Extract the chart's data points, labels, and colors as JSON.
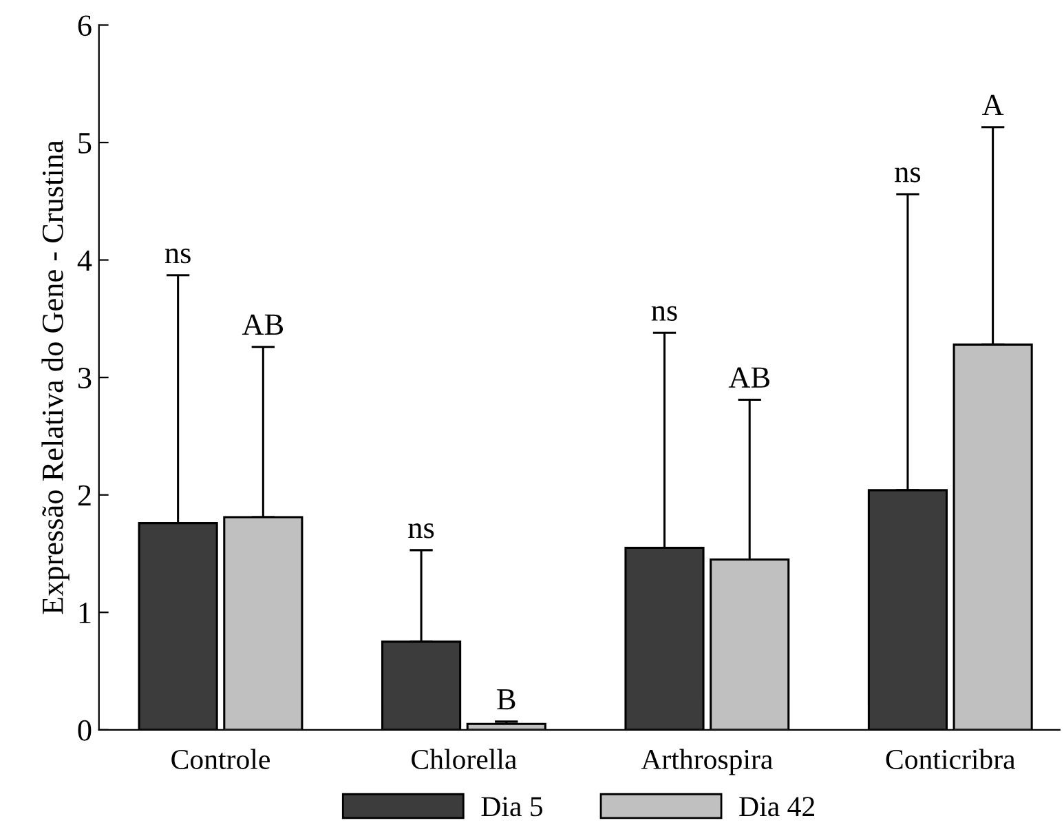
{
  "chart_data": {
    "type": "bar",
    "ylabel": "Expressão Relativa do Gene - Crustina",
    "categories": [
      "Controle",
      "Chlorella",
      "Arthrospira",
      "Conticribra"
    ],
    "series": [
      {
        "name": "Dia 5",
        "color": "#3c3c3c",
        "values": [
          1.76,
          0.75,
          1.55,
          2.04
        ],
        "errors": [
          [
            1.76,
            3.87
          ],
          [
            0.75,
            1.53
          ],
          [
            1.55,
            3.38
          ],
          [
            2.04,
            4.56
          ]
        ]
      },
      {
        "name": "Dia 42",
        "color": "#c0c0c0",
        "values": [
          1.81,
          0.05,
          1.45,
          3.28
        ],
        "errors": [
          [
            1.81,
            3.26
          ],
          [
            0.05,
            0.07
          ],
          [
            1.45,
            2.81
          ],
          [
            3.28,
            5.13
          ]
        ]
      }
    ],
    "ylim": [
      0,
      6
    ],
    "yticks": [
      0,
      1,
      2,
      3,
      4,
      5,
      6
    ],
    "annotations": [
      "ns",
      "AB",
      "ns",
      "B",
      "ns",
      "AB",
      "ns",
      "A"
    ],
    "grid": false,
    "legend": "bottom"
  }
}
